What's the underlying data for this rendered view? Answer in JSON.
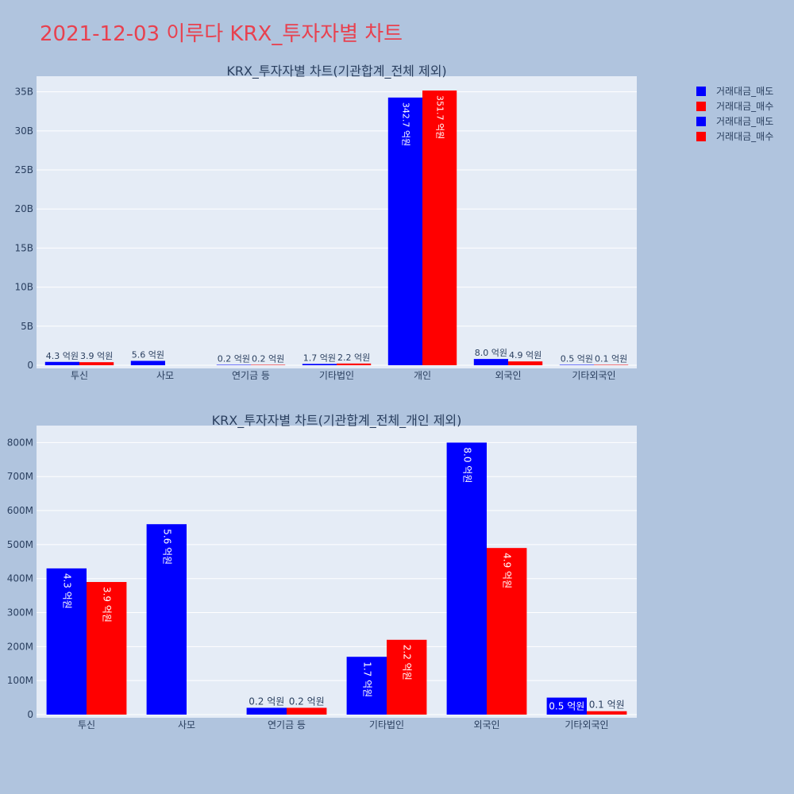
{
  "page_title": "2021-12-03 이루다 KRX_투자자별 차트",
  "colors": {
    "sell": "#0000ff",
    "buy": "#ff0000",
    "title": "#e8414f",
    "plot_bg": "#e5ecf6",
    "page_bg": "#b0c4de"
  },
  "legend": {
    "position": "top-right",
    "items": [
      {
        "label": "거래대금_매도",
        "color": "#0000ff"
      },
      {
        "label": "거래대금_매수",
        "color": "#ff0000"
      },
      {
        "label": "거래대금_매도",
        "color": "#0000ff"
      },
      {
        "label": "거래대금_매수",
        "color": "#ff0000"
      }
    ]
  },
  "chart_data": [
    {
      "type": "bar",
      "title": "KRX_투자자별 차트(기관합계_전체 제외)",
      "categories": [
        "투신",
        "사모",
        "연기금 등",
        "기타법인",
        "개인",
        "외국인",
        "기타외국인"
      ],
      "ylim": [
        0,
        37000000000
      ],
      "yticks": [
        0,
        5000000000,
        10000000000,
        15000000000,
        20000000000,
        25000000000,
        30000000000,
        35000000000
      ],
      "ytick_labels": [
        "0",
        "5B",
        "10B",
        "15B",
        "20B",
        "25B",
        "30B",
        "35B"
      ],
      "grid": true,
      "series": [
        {
          "name": "거래대금_매도",
          "values": [
            430000000,
            560000000,
            20000000,
            170000000,
            34270000000,
            800000000,
            50000000
          ],
          "labels": [
            "4.3 억원",
            "5.6 억원",
            "0.2 억원",
            "1.7 억원",
            "342.7 억원",
            "8.0 억원",
            "0.5 억원"
          ]
        },
        {
          "name": "거래대금_매수",
          "values": [
            390000000,
            null,
            20000000,
            220000000,
            35170000000,
            490000000,
            10000000
          ],
          "labels": [
            "3.9 억원",
            "",
            "0.2 억원",
            "2.2 억원",
            "351.7 억원",
            "4.9 억원",
            "0.1 억원"
          ]
        }
      ]
    },
    {
      "type": "bar",
      "title": "KRX_투자자별 차트(기관합계_전체_개인 제외)",
      "categories": [
        "투신",
        "사모",
        "연기금 등",
        "기타법인",
        "외국인",
        "기타외국인"
      ],
      "ylim": [
        0,
        850000000
      ],
      "yticks": [
        0,
        100000000,
        200000000,
        300000000,
        400000000,
        500000000,
        600000000,
        700000000,
        800000000
      ],
      "ytick_labels": [
        "0",
        "100M",
        "200M",
        "300M",
        "400M",
        "500M",
        "600M",
        "700M",
        "800M"
      ],
      "grid": true,
      "series": [
        {
          "name": "거래대금_매도",
          "values": [
            430000000,
            560000000,
            20000000,
            170000000,
            800000000,
            50000000
          ],
          "labels": [
            "4.3 억원",
            "5.6 억원",
            "0.2 억원",
            "1.7 억원",
            "8.0 억원",
            "0.5 억원"
          ]
        },
        {
          "name": "거래대금_매수",
          "values": [
            390000000,
            null,
            20000000,
            220000000,
            490000000,
            10000000
          ],
          "labels": [
            "3.9 억원",
            "",
            "0.2 억원",
            "2.2 억원",
            "4.9 억원",
            "0.1 억원"
          ]
        }
      ]
    }
  ]
}
